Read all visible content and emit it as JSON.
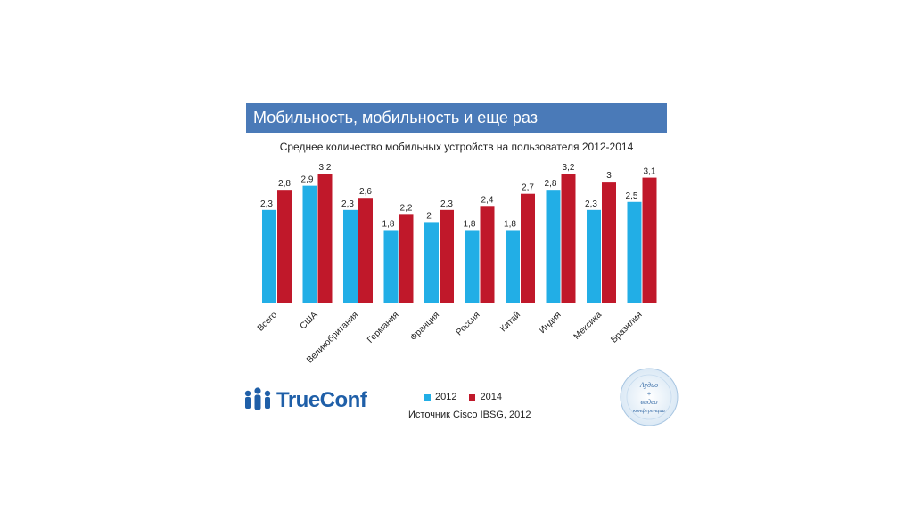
{
  "slide": {
    "title": "Мобильность, мобильность и еще раз",
    "colors": {
      "title_bar": "#4a7ab8",
      "series_2012": "#22aee6",
      "series_2014": "#c0182a"
    }
  },
  "chart_data": {
    "type": "bar",
    "title": "Среднее количество мобильных устройств на пользователя 2012-2014",
    "categories": [
      "Всего",
      "США",
      "Великобритания",
      "Германия",
      "Франция",
      "Россия",
      "Китай",
      "Индия",
      "Мексика",
      "Бразилия"
    ],
    "series": [
      {
        "name": "2012",
        "values": [
          2.3,
          2.9,
          2.3,
          1.8,
          2,
          1.8,
          1.8,
          2.8,
          2.3,
          2.5
        ],
        "labels": [
          "2,3",
          "2,9",
          "2,3",
          "1,8",
          "2",
          "1,8",
          "1,8",
          "2,8",
          "2,3",
          "2,5"
        ],
        "color": "#22aee6"
      },
      {
        "name": "2014",
        "values": [
          2.8,
          3.2,
          2.6,
          2.2,
          2.3,
          2.4,
          2.7,
          3.2,
          3,
          3.1
        ],
        "labels": [
          "2,8",
          "3,2",
          "2,6",
          "2,2",
          "2,3",
          "2,4",
          "2,7",
          "3,2",
          "3",
          "3,1"
        ],
        "color": "#c0182a"
      }
    ],
    "ylim": [
      0,
      3.4
    ],
    "grid": false,
    "legend_placement": "bottom"
  },
  "legend": {
    "item_2012": "2012",
    "item_2014": "2014"
  },
  "source": "Источник Cisco  IBSG, 2012",
  "branding": {
    "logo_text": "TrueConf",
    "seal_text": [
      "Аудио",
      "+",
      "видео",
      "конференции"
    ]
  }
}
